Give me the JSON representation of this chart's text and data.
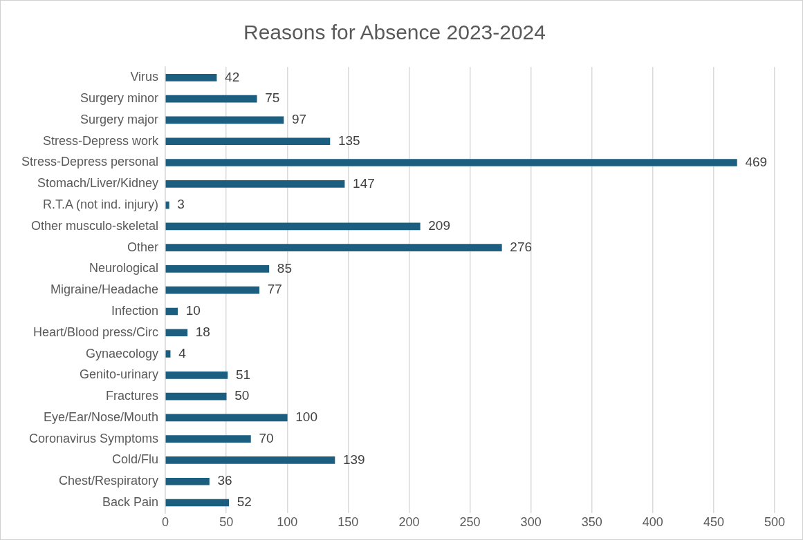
{
  "chart_data": {
    "type": "bar",
    "orientation": "horizontal",
    "title": "Reasons for Absence 2023-2024",
    "categories": [
      "Virus",
      "Surgery minor",
      "Surgery major",
      "Stress-Depress work",
      "Stress-Depress personal",
      "Stomach/Liver/Kidney",
      "R.T.A (not ind. injury)",
      "Other musculo-skeletal",
      "Other",
      "Neurological",
      "Migraine/Headache",
      "Infection",
      "Heart/Blood press/Circ",
      "Gynaecology",
      "Genito-urinary",
      "Fractures",
      "Eye/Ear/Nose/Mouth",
      "Coronavirus Symptoms",
      "Cold/Flu",
      "Chest/Respiratory",
      "Back Pain"
    ],
    "values": [
      42,
      75,
      97,
      135,
      469,
      147,
      3,
      209,
      276,
      85,
      77,
      10,
      18,
      4,
      51,
      50,
      100,
      70,
      139,
      36,
      52
    ],
    "color": "#1b5e80",
    "xlim": [
      0,
      500
    ],
    "xticks": [
      0,
      50,
      100,
      150,
      200,
      250,
      300,
      350,
      400,
      450,
      500
    ],
    "grid": "x",
    "data_labels": true,
    "legend": false
  }
}
